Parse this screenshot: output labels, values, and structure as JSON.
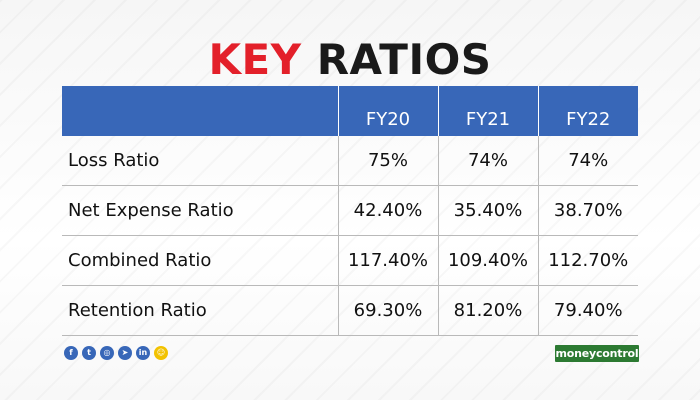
{
  "title": {
    "word1": "KEY",
    "word2": "RATIOS"
  },
  "colors": {
    "accent_red": "#e3202a",
    "header_blue": "#3867b8",
    "title_dark": "#1a1a1a",
    "logo_green": "#2c7a32"
  },
  "chart_data": {
    "type": "table",
    "title": "KEY RATIOS",
    "columns": [
      "",
      "FY20",
      "FY21",
      "FY22"
    ],
    "rows": [
      {
        "label": "Loss Ratio",
        "values": [
          "75%",
          "74%",
          "74%"
        ]
      },
      {
        "label": "Net Expense Ratio",
        "values": [
          "42.40%",
          "35.40%",
          "38.70%"
        ]
      },
      {
        "label": "Combined Ratio",
        "values": [
          "117.40%",
          "109.40%",
          "112.70%"
        ]
      },
      {
        "label": "Retention Ratio",
        "values": [
          "69.30%",
          "81.20%",
          "79.40%"
        ]
      }
    ]
  },
  "social_icons": [
    {
      "icon": "facebook-icon",
      "glyph": "f"
    },
    {
      "icon": "twitter-icon",
      "glyph": "t"
    },
    {
      "icon": "instagram-icon",
      "glyph": "◎"
    },
    {
      "icon": "telegram-icon",
      "glyph": "➤"
    },
    {
      "icon": "linkedin-icon",
      "glyph": "in"
    },
    {
      "icon": "snapchat-icon",
      "glyph": "☺"
    }
  ],
  "brand": {
    "logo_text": "moneycontrol"
  }
}
